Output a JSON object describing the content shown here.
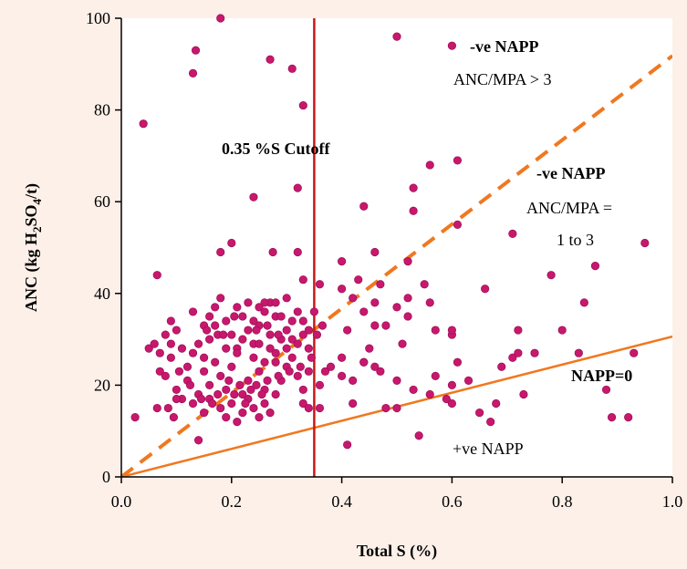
{
  "colors": {
    "background": "#fdf0e9",
    "plot_background": "#ffffff",
    "points": "#c8186e",
    "point_outline": "#a01058",
    "napp_zero_line": "#f07820",
    "ratio3_line": "#f07820",
    "cutoff_line": "#c81818"
  },
  "chart_data": {
    "type": "scatter",
    "xlabel": "Total S (%)",
    "ylabel_parts": [
      "ANC (kg H",
      "2",
      "SO",
      "4",
      "/t)"
    ],
    "xlim": [
      0.0,
      1.0
    ],
    "ylim": [
      0,
      100
    ],
    "x_ticks": [
      "0.0",
      "0.2",
      "0.4",
      "0.6",
      "0.8",
      "1.0"
    ],
    "y_ticks": [
      "0",
      "20",
      "40",
      "60",
      "80",
      "100"
    ],
    "grid": false,
    "lines": [
      {
        "label": "NAPP=0",
        "style": "solid",
        "x": [
          0.0,
          1.0
        ],
        "y": [
          0,
          30.6
        ]
      },
      {
        "label": "ANC/MPA = 3",
        "style": "dashed",
        "x": [
          0.0,
          1.0
        ],
        "y": [
          0,
          91.8
        ]
      },
      {
        "label": "0.35 %S Cutoff",
        "style": "vertical",
        "x": [
          0.35,
          0.35
        ],
        "y": [
          0,
          100
        ]
      }
    ],
    "annotations": {
      "cutoff": "0.35 %S Cutoff",
      "region1_title": "-ve NAPP",
      "region1_ratio": "ANC/MPA  > 3",
      "region2_title": "-ve NAPP",
      "region2_ratio_a": "ANC/MPA =",
      "region2_ratio_b": "1 to 3",
      "napp_zero": "NAPP=0",
      "positive": "+ve NAPP"
    },
    "points": [
      [
        0.18,
        100
      ],
      [
        0.5,
        96
      ],
      [
        0.135,
        93
      ],
      [
        0.13,
        88
      ],
      [
        0.27,
        91
      ],
      [
        0.31,
        89
      ],
      [
        0.33,
        81
      ],
      [
        0.04,
        77
      ],
      [
        0.61,
        69
      ],
      [
        0.56,
        68
      ],
      [
        0.53,
        63
      ],
      [
        0.32,
        63
      ],
      [
        0.24,
        61
      ],
      [
        0.44,
        59
      ],
      [
        0.53,
        58
      ],
      [
        0.61,
        55
      ],
      [
        0.71,
        53
      ],
      [
        0.95,
        51
      ],
      [
        0.2,
        51
      ],
      [
        0.18,
        49
      ],
      [
        0.275,
        49
      ],
      [
        0.32,
        49
      ],
      [
        0.46,
        49
      ],
      [
        0.4,
        47
      ],
      [
        0.52,
        47
      ],
      [
        0.86,
        46
      ],
      [
        0.065,
        44
      ],
      [
        0.33,
        43
      ],
      [
        0.36,
        42
      ],
      [
        0.43,
        43
      ],
      [
        0.47,
        42
      ],
      [
        0.4,
        41
      ],
      [
        0.55,
        42
      ],
      [
        0.78,
        44
      ],
      [
        0.66,
        41
      ],
      [
        0.42,
        39
      ],
      [
        0.46,
        38
      ],
      [
        0.52,
        39
      ],
      [
        0.56,
        38
      ],
      [
        0.84,
        38
      ],
      [
        0.5,
        37
      ],
      [
        0.44,
        36
      ],
      [
        0.35,
        36
      ],
      [
        0.52,
        35
      ],
      [
        0.46,
        33
      ],
      [
        0.41,
        32
      ],
      [
        0.48,
        33
      ],
      [
        0.57,
        32
      ],
      [
        0.6,
        31
      ],
      [
        0.6,
        32
      ],
      [
        0.72,
        32
      ],
      [
        0.8,
        32
      ],
      [
        0.51,
        29
      ],
      [
        0.45,
        28
      ],
      [
        0.4,
        26
      ],
      [
        0.38,
        24
      ],
      [
        0.4,
        22
      ],
      [
        0.44,
        25
      ],
      [
        0.42,
        21
      ],
      [
        0.47,
        23
      ],
      [
        0.5,
        21
      ],
      [
        0.36,
        20
      ],
      [
        0.37,
        23
      ],
      [
        0.53,
        19
      ],
      [
        0.56,
        18
      ],
      [
        0.59,
        17
      ],
      [
        0.6,
        16
      ],
      [
        0.63,
        21
      ],
      [
        0.61,
        25
      ],
      [
        0.6,
        20
      ],
      [
        0.65,
        14
      ],
      [
        0.68,
        16
      ],
      [
        0.69,
        24
      ],
      [
        0.71,
        26
      ],
      [
        0.72,
        27
      ],
      [
        0.73,
        18
      ],
      [
        0.75,
        27
      ],
      [
        0.83,
        27
      ],
      [
        0.93,
        27
      ],
      [
        0.88,
        19
      ],
      [
        0.89,
        13
      ],
      [
        0.92,
        13
      ],
      [
        0.48,
        15
      ],
      [
        0.5,
        15
      ],
      [
        0.54,
        9
      ],
      [
        0.41,
        7
      ],
      [
        0.36,
        15
      ],
      [
        0.42,
        16
      ],
      [
        0.44,
        25
      ],
      [
        0.46,
        24
      ],
      [
        0.57,
        22
      ],
      [
        0.67,
        12
      ],
      [
        0.025,
        13
      ],
      [
        0.14,
        8
      ],
      [
        0.05,
        28
      ],
      [
        0.06,
        29
      ],
      [
        0.07,
        23
      ],
      [
        0.08,
        31
      ],
      [
        0.09,
        34
      ],
      [
        0.1,
        32
      ],
      [
        0.11,
        28
      ],
      [
        0.12,
        24
      ],
      [
        0.13,
        36
      ],
      [
        0.14,
        29
      ],
      [
        0.15,
        33
      ],
      [
        0.16,
        35
      ],
      [
        0.17,
        37
      ],
      [
        0.18,
        39
      ],
      [
        0.19,
        34
      ],
      [
        0.2,
        31
      ],
      [
        0.21,
        28
      ],
      [
        0.22,
        35
      ],
      [
        0.23,
        32
      ],
      [
        0.24,
        29
      ],
      [
        0.25,
        33
      ],
      [
        0.26,
        36
      ],
      [
        0.27,
        38
      ],
      [
        0.28,
        35
      ],
      [
        0.29,
        30
      ],
      [
        0.3,
        32
      ],
      [
        0.31,
        34
      ],
      [
        0.32,
        36
      ],
      [
        0.33,
        31
      ],
      [
        0.34,
        28
      ],
      [
        0.08,
        22
      ],
      [
        0.09,
        26
      ],
      [
        0.1,
        19
      ],
      [
        0.11,
        17
      ],
      [
        0.12,
        21
      ],
      [
        0.13,
        27
      ],
      [
        0.14,
        18
      ],
      [
        0.15,
        23
      ],
      [
        0.16,
        20
      ],
      [
        0.17,
        25
      ],
      [
        0.18,
        22
      ],
      [
        0.19,
        19
      ],
      [
        0.2,
        24
      ],
      [
        0.21,
        27
      ],
      [
        0.22,
        18
      ],
      [
        0.23,
        21
      ],
      [
        0.24,
        26
      ],
      [
        0.25,
        23
      ],
      [
        0.26,
        19
      ],
      [
        0.27,
        28
      ],
      [
        0.28,
        25
      ],
      [
        0.29,
        21
      ],
      [
        0.3,
        24
      ],
      [
        0.31,
        26
      ],
      [
        0.32,
        22
      ],
      [
        0.33,
        19
      ],
      [
        0.34,
        23
      ],
      [
        0.085,
        15
      ],
      [
        0.095,
        13
      ],
      [
        0.1,
        17
      ],
      [
        0.13,
        16
      ],
      [
        0.15,
        14
      ],
      [
        0.16,
        17
      ],
      [
        0.18,
        15
      ],
      [
        0.19,
        13
      ],
      [
        0.2,
        16
      ],
      [
        0.21,
        12
      ],
      [
        0.22,
        14
      ],
      [
        0.23,
        17
      ],
      [
        0.24,
        15
      ],
      [
        0.25,
        13
      ],
      [
        0.26,
        16
      ],
      [
        0.27,
        14
      ],
      [
        0.28,
        18
      ],
      [
        0.33,
        16
      ],
      [
        0.34,
        15
      ],
      [
        0.065,
        15
      ],
      [
        0.07,
        27
      ],
      [
        0.09,
        29
      ],
      [
        0.15,
        26
      ],
      [
        0.16,
        30
      ],
      [
        0.17,
        33
      ],
      [
        0.19,
        28
      ],
      [
        0.22,
        30
      ],
      [
        0.24,
        34
      ],
      [
        0.25,
        29
      ],
      [
        0.26,
        25
      ],
      [
        0.27,
        31
      ],
      [
        0.28,
        27
      ],
      [
        0.29,
        35
      ],
      [
        0.3,
        28
      ],
      [
        0.31,
        30
      ],
      [
        0.32,
        29
      ],
      [
        0.33,
        34
      ],
      [
        0.34,
        32
      ],
      [
        0.21,
        37
      ],
      [
        0.23,
        38
      ],
      [
        0.25,
        37
      ],
      [
        0.26,
        38
      ],
      [
        0.28,
        38
      ],
      [
        0.3,
        39
      ],
      [
        0.155,
        32
      ],
      [
        0.175,
        31
      ],
      [
        0.185,
        31
      ],
      [
        0.205,
        35
      ],
      [
        0.245,
        32
      ],
      [
        0.265,
        33
      ],
      [
        0.285,
        31
      ],
      [
        0.255,
        18
      ],
      [
        0.235,
        19
      ],
      [
        0.215,
        20
      ],
      [
        0.195,
        21
      ],
      [
        0.175,
        18
      ],
      [
        0.145,
        17
      ],
      [
        0.125,
        20
      ],
      [
        0.105,
        23
      ],
      [
        0.165,
        16
      ],
      [
        0.205,
        18
      ],
      [
        0.225,
        16
      ],
      [
        0.245,
        20
      ],
      [
        0.265,
        21
      ],
      [
        0.285,
        22
      ],
      [
        0.305,
        23
      ],
      [
        0.325,
        24
      ],
      [
        0.345,
        26
      ],
      [
        0.355,
        31
      ],
      [
        0.365,
        33
      ]
    ]
  }
}
